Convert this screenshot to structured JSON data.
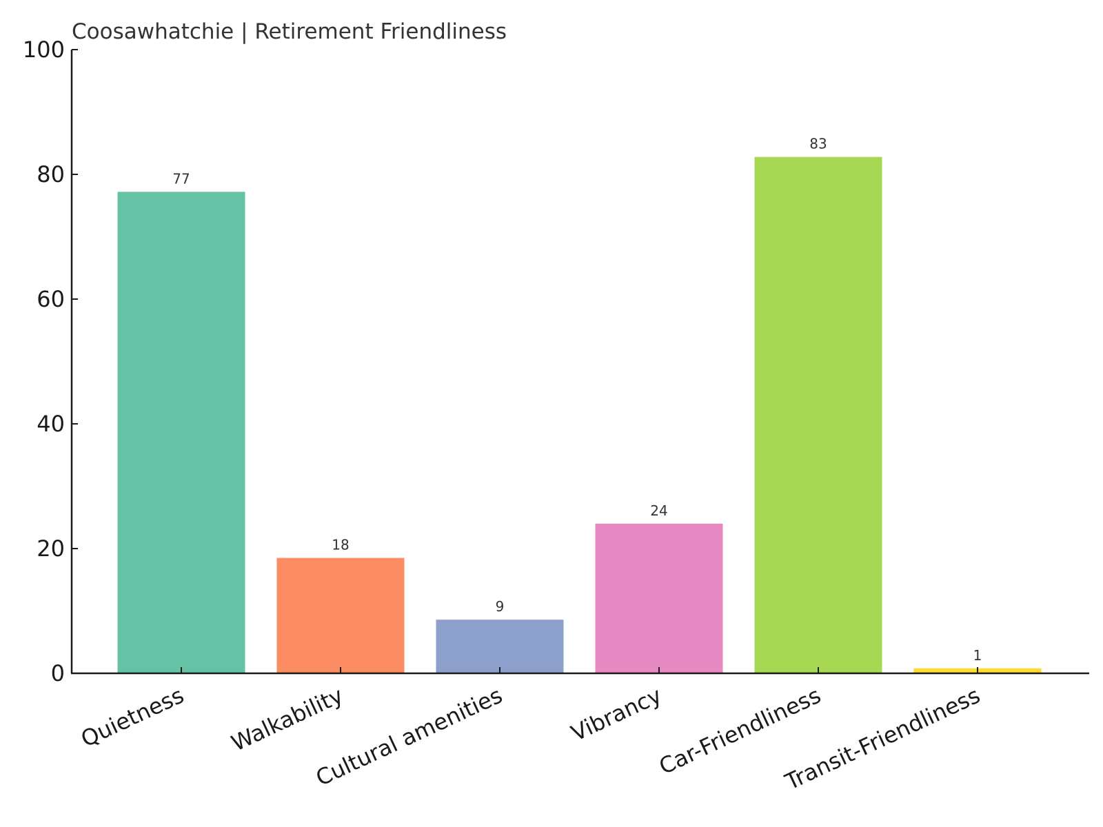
{
  "chart_data": {
    "type": "bar",
    "title": "Coosawhatchie | Retirement Friendliness",
    "xlabel": "",
    "ylabel": "",
    "categories": [
      "Quietness",
      "Walkability",
      "Cultural amenities",
      "Vibrancy",
      "Car-Friendliness",
      "Transit-Friendliness"
    ],
    "values": [
      77.2,
      18.5,
      8.6,
      24.0,
      82.8,
      0.8
    ],
    "data_labels": [
      "77",
      "18",
      "9",
      "24",
      "83",
      "1"
    ],
    "colors": [
      "#66c2a5",
      "#fc8d62",
      "#8da0cb",
      "#e78ac3",
      "#a6d854",
      "#ffd92f"
    ],
    "ylim": [
      0,
      100
    ],
    "yticks": [
      0,
      20,
      40,
      60,
      80,
      100
    ],
    "grid": false,
    "legend": "none"
  }
}
